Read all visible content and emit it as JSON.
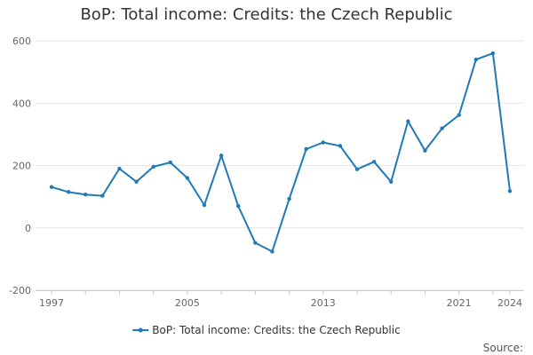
{
  "colors": {
    "series": "#1f7ab5",
    "grid": "#e6e6e6",
    "axis": "#cccccc",
    "text": "#333333",
    "tick_text": "#666666"
  },
  "source_label": "Source:",
  "chart_data": {
    "type": "line",
    "title": "BoP: Total income: Credits: the Czech Republic",
    "xlabel": "",
    "ylabel": "",
    "ylim": [
      -200,
      600
    ],
    "yticks": [
      -200,
      0,
      200,
      400,
      600
    ],
    "xlim": [
      1997,
      2024
    ],
    "xticks": [
      1997,
      2005,
      2013,
      2021,
      2024
    ],
    "x_minor_ticks": [
      1997,
      1999,
      2001,
      2003,
      2005,
      2007,
      2009,
      2011,
      2013,
      2015,
      2017,
      2019,
      2021,
      2023,
      2024
    ],
    "grid": true,
    "legend_position": "bottom",
    "series": [
      {
        "name": "BoP: Total income: Credits: the Czech Republic",
        "x": [
          1997,
          1998,
          1999,
          2000,
          2001,
          2002,
          2003,
          2004,
          2005,
          2006,
          2007,
          2008,
          2009,
          2010,
          2011,
          2012,
          2013,
          2014,
          2015,
          2016,
          2017,
          2018,
          2019,
          2020,
          2021,
          2022,
          2023,
          2024
        ],
        "values": [
          131,
          115,
          107,
          103,
          190,
          148,
          196,
          210,
          160,
          73,
          232,
          70,
          -48,
          -76,
          93,
          253,
          274,
          263,
          188,
          212,
          148,
          342,
          248,
          319,
          362,
          540,
          560,
          118
        ]
      }
    ]
  }
}
